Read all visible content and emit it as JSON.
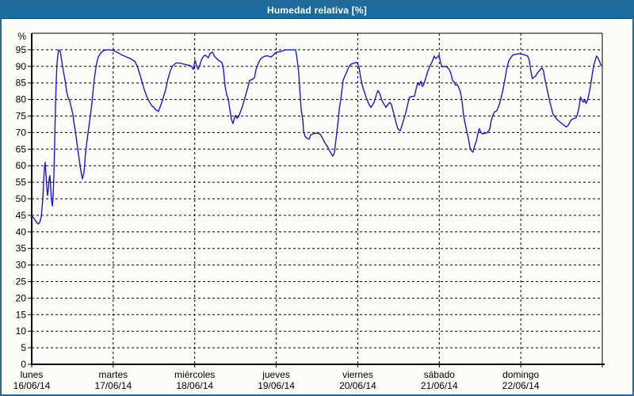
{
  "window": {
    "title": "Humedad relativa [%]"
  },
  "colors": {
    "window_border": "#26689a",
    "titlebar_bg": "#1d6a9e",
    "titlebar_text": "#ffffff",
    "background": "#fcfdf9",
    "grid": "#000000",
    "axis": "#000000",
    "line": "#1a1ac8",
    "label_text": "#000000"
  },
  "chart_data": {
    "type": "line",
    "title": "Humedad relativa [%]",
    "ylabel": "%",
    "ylim": [
      0,
      100
    ],
    "yticks": [
      0,
      5,
      10,
      15,
      20,
      25,
      30,
      35,
      40,
      45,
      50,
      55,
      60,
      65,
      70,
      75,
      80,
      85,
      90,
      95
    ],
    "x_days": 7,
    "grid": true,
    "legend": "none",
    "days": [
      {
        "name": "lunes",
        "date": "16/06/14"
      },
      {
        "name": "martes",
        "date": "17/06/14"
      },
      {
        "name": "miércoles",
        "date": "18/06/14"
      },
      {
        "name": "jueves",
        "date": "19/06/14"
      },
      {
        "name": "viernes",
        "date": "20/06/14"
      },
      {
        "name": "sábado",
        "date": "21/06/14"
      },
      {
        "name": "domingo",
        "date": "22/06/14"
      }
    ],
    "series": [
      {
        "name": "Humedad relativa [%]",
        "unit": "%",
        "points": [
          [
            0,
            45
          ],
          [
            0.019,
            44.3
          ],
          [
            0.039,
            43.7
          ],
          [
            0.058,
            43
          ],
          [
            0.078,
            42.4
          ],
          [
            0.097,
            42.8
          ],
          [
            0.117,
            44.5
          ],
          [
            0.136,
            50
          ],
          [
            0.146,
            55
          ],
          [
            0.156,
            59
          ],
          [
            0.165,
            61
          ],
          [
            0.175,
            57.5
          ],
          [
            0.185,
            53.5
          ],
          [
            0.194,
            51
          ],
          [
            0.204,
            53
          ],
          [
            0.214,
            56
          ],
          [
            0.224,
            57
          ],
          [
            0.233,
            53
          ],
          [
            0.243,
            49.5
          ],
          [
            0.253,
            47.8
          ],
          [
            0.262,
            50
          ],
          [
            0.272,
            57
          ],
          [
            0.282,
            67
          ],
          [
            0.292,
            78
          ],
          [
            0.301,
            86
          ],
          [
            0.311,
            91
          ],
          [
            0.321,
            93.5
          ],
          [
            0.331,
            95
          ],
          [
            0.35,
            94.5
          ],
          [
            0.369,
            91.5
          ],
          [
            0.389,
            88.5
          ],
          [
            0.408,
            86
          ],
          [
            0.428,
            82.5
          ],
          [
            0.447,
            80.5
          ],
          [
            0.467,
            79.5
          ],
          [
            0.486,
            77.5
          ],
          [
            0.506,
            75.5
          ],
          [
            0.515,
            73.5
          ],
          [
            0.535,
            70.5
          ],
          [
            0.554,
            67
          ],
          [
            0.574,
            63.5
          ],
          [
            0.593,
            60
          ],
          [
            0.612,
            57.3
          ],
          [
            0.622,
            56
          ],
          [
            0.642,
            58
          ],
          [
            0.651,
            61
          ],
          [
            0.661,
            64
          ],
          [
            0.681,
            68
          ],
          [
            0.7,
            71.5
          ],
          [
            0.719,
            75
          ],
          [
            0.739,
            79
          ],
          [
            0.758,
            84
          ],
          [
            0.778,
            88
          ],
          [
            0.797,
            91
          ],
          [
            0.817,
            92.8
          ],
          [
            0.846,
            94
          ],
          [
            0.875,
            94.7
          ],
          [
            0.914,
            95
          ],
          [
            0.953,
            95
          ],
          [
            0.982,
            94.9
          ],
          [
            1.001,
            94.8
          ],
          [
            1.04,
            94.4
          ],
          [
            1.079,
            93.8
          ],
          [
            1.118,
            93.3
          ],
          [
            1.167,
            92.8
          ],
          [
            1.215,
            92.3
          ],
          [
            1.264,
            91.5
          ],
          [
            1.293,
            90.2
          ],
          [
            1.322,
            88
          ],
          [
            1.351,
            85.5
          ],
          [
            1.381,
            83
          ],
          [
            1.41,
            81
          ],
          [
            1.439,
            79.5
          ],
          [
            1.468,
            78.3
          ],
          [
            1.497,
            77.6
          ],
          [
            1.526,
            76.8
          ],
          [
            1.556,
            76.4
          ],
          [
            1.585,
            78.4
          ],
          [
            1.614,
            80.5
          ],
          [
            1.643,
            83
          ],
          [
            1.672,
            86.3
          ],
          [
            1.701,
            88.7
          ],
          [
            1.731,
            90.2
          ],
          [
            1.769,
            91
          ],
          [
            1.808,
            91
          ],
          [
            1.847,
            90.8
          ],
          [
            1.896,
            90.5
          ],
          [
            1.935,
            90.3
          ],
          [
            1.964,
            89.9
          ],
          [
            1.983,
            89.1
          ],
          [
            2.003,
            91.9
          ],
          [
            2.022,
            90.3
          ],
          [
            2.042,
            89.1
          ],
          [
            2.061,
            90.3
          ],
          [
            2.081,
            91.9
          ],
          [
            2.11,
            93.1
          ],
          [
            2.129,
            93.4
          ],
          [
            2.149,
            93
          ],
          [
            2.168,
            92.6
          ],
          [
            2.188,
            93.9
          ],
          [
            2.217,
            94.3
          ],
          [
            2.246,
            93
          ],
          [
            2.275,
            92.2
          ],
          [
            2.304,
            91.6
          ],
          [
            2.333,
            91.2
          ],
          [
            2.353,
            89
          ],
          [
            2.372,
            84
          ],
          [
            2.392,
            81.5
          ],
          [
            2.411,
            80.2
          ],
          [
            2.431,
            77
          ],
          [
            2.45,
            74
          ],
          [
            2.469,
            72.7
          ],
          [
            2.489,
            74.5
          ],
          [
            2.499,
            75.2
          ],
          [
            2.518,
            74.3
          ],
          [
            2.538,
            74.8
          ],
          [
            2.557,
            76
          ],
          [
            2.586,
            78
          ],
          [
            2.615,
            80.5
          ],
          [
            2.644,
            83
          ],
          [
            2.674,
            85.8
          ],
          [
            2.703,
            86
          ],
          [
            2.732,
            86.5
          ],
          [
            2.751,
            89
          ],
          [
            2.781,
            91
          ],
          [
            2.81,
            92.3
          ],
          [
            2.849,
            93
          ],
          [
            2.888,
            93.2
          ],
          [
            2.917,
            93
          ],
          [
            2.936,
            92.8
          ],
          [
            2.965,
            93.5
          ],
          [
            2.994,
            94.2
          ],
          [
            3.033,
            94.4
          ],
          [
            3.072,
            94.6
          ],
          [
            3.111,
            95
          ],
          [
            3.16,
            95
          ],
          [
            3.208,
            95
          ],
          [
            3.238,
            95
          ],
          [
            3.257,
            92
          ],
          [
            3.276,
            88
          ],
          [
            3.286,
            84
          ],
          [
            3.306,
            77
          ],
          [
            3.325,
            74
          ],
          [
            3.335,
            70.5
          ],
          [
            3.354,
            68.8
          ],
          [
            3.383,
            68.2
          ],
          [
            3.403,
            68
          ],
          [
            3.422,
            69.3
          ],
          [
            3.451,
            69.6
          ],
          [
            3.481,
            69.8
          ],
          [
            3.51,
            69.8
          ],
          [
            3.539,
            69.5
          ],
          [
            3.568,
            68.3
          ],
          [
            3.597,
            66.9
          ],
          [
            3.626,
            65.8
          ],
          [
            3.646,
            64.9
          ],
          [
            3.675,
            63.6
          ],
          [
            3.694,
            62.9
          ],
          [
            3.714,
            64
          ],
          [
            3.724,
            66
          ],
          [
            3.743,
            70
          ],
          [
            3.762,
            74
          ],
          [
            3.772,
            77
          ],
          [
            3.792,
            80
          ],
          [
            3.821,
            85.8
          ],
          [
            3.84,
            87
          ],
          [
            3.86,
            88
          ],
          [
            3.889,
            89.8
          ],
          [
            3.918,
            90.7
          ],
          [
            3.957,
            91
          ],
          [
            3.976,
            91.2
          ],
          [
            3.996,
            90.9
          ],
          [
            4.015,
            89.8
          ],
          [
            4.035,
            86.7
          ],
          [
            4.064,
            83.5
          ],
          [
            4.103,
            80.7
          ],
          [
            4.132,
            78.8
          ],
          [
            4.161,
            77.6
          ],
          [
            4.2,
            79.1
          ],
          [
            4.229,
            81.5
          ],
          [
            4.249,
            82.7
          ],
          [
            4.268,
            81.9
          ],
          [
            4.297,
            79.6
          ],
          [
            4.326,
            78.4
          ],
          [
            4.346,
            77.6
          ],
          [
            4.365,
            78.4
          ],
          [
            4.394,
            79.1
          ],
          [
            4.414,
            78.4
          ],
          [
            4.443,
            75.6
          ],
          [
            4.472,
            72.8
          ],
          [
            4.492,
            71.2
          ],
          [
            4.521,
            70.5
          ],
          [
            4.55,
            72.8
          ],
          [
            4.589,
            76
          ],
          [
            4.618,
            79.1
          ],
          [
            4.637,
            80.7
          ],
          [
            4.667,
            80.9
          ],
          [
            4.696,
            81
          ],
          [
            4.715,
            83.1
          ],
          [
            4.735,
            85
          ],
          [
            4.754,
            84.3
          ],
          [
            4.774,
            85.5
          ],
          [
            4.793,
            83.9
          ],
          [
            4.812,
            84.7
          ],
          [
            4.832,
            86.3
          ],
          [
            4.861,
            88.7
          ],
          [
            4.89,
            90.3
          ],
          [
            4.919,
            91.8
          ],
          [
            4.939,
            93.1
          ],
          [
            4.958,
            92.4
          ],
          [
            4.978,
            92.8
          ],
          [
            4.997,
            93.4
          ],
          [
            5.017,
            91
          ],
          [
            5.036,
            89.8
          ],
          [
            5.065,
            90
          ],
          [
            5.094,
            89.8
          ],
          [
            5.124,
            89
          ],
          [
            5.143,
            87.9
          ],
          [
            5.162,
            85.8
          ],
          [
            5.182,
            85.3
          ],
          [
            5.201,
            84.3
          ],
          [
            5.221,
            84.5
          ],
          [
            5.24,
            83.5
          ],
          [
            5.259,
            82.3
          ],
          [
            5.279,
            79.6
          ],
          [
            5.298,
            75.2
          ],
          [
            5.317,
            72.8
          ],
          [
            5.337,
            70.5
          ],
          [
            5.356,
            68.5
          ],
          [
            5.376,
            65.5
          ],
          [
            5.395,
            64.5
          ],
          [
            5.414,
            64.1
          ],
          [
            5.434,
            66
          ],
          [
            5.453,
            67.3
          ],
          [
            5.472,
            69.5
          ],
          [
            5.492,
            71.2
          ],
          [
            5.511,
            70
          ],
          [
            5.531,
            69.6
          ],
          [
            5.56,
            69.8
          ],
          [
            5.589,
            70
          ],
          [
            5.618,
            71
          ],
          [
            5.637,
            73.6
          ],
          [
            5.657,
            75.2
          ],
          [
            5.676,
            76.2
          ],
          [
            5.706,
            76.6
          ],
          [
            5.735,
            78.4
          ],
          [
            5.754,
            80
          ],
          [
            5.773,
            82
          ],
          [
            5.793,
            84.5
          ],
          [
            5.812,
            87
          ],
          [
            5.831,
            89.8
          ],
          [
            5.851,
            91.5
          ],
          [
            5.87,
            92.4
          ],
          [
            5.899,
            93.4
          ],
          [
            5.928,
            93.6
          ],
          [
            5.967,
            93.8
          ],
          [
            5.996,
            93.8
          ],
          [
            6.026,
            93.6
          ],
          [
            6.055,
            93.4
          ],
          [
            6.084,
            93.1
          ],
          [
            6.103,
            92
          ],
          [
            6.122,
            88.7
          ],
          [
            6.142,
            86.3
          ],
          [
            6.161,
            86.7
          ],
          [
            6.181,
            87.1
          ],
          [
            6.2,
            87.9
          ],
          [
            6.229,
            88.7
          ],
          [
            6.258,
            89.6
          ],
          [
            6.278,
            88.7
          ],
          [
            6.297,
            86
          ],
          [
            6.316,
            83.9
          ],
          [
            6.336,
            81.5
          ],
          [
            6.355,
            79.4
          ],
          [
            6.374,
            77.6
          ],
          [
            6.394,
            75.6
          ],
          [
            6.423,
            74.6
          ],
          [
            6.452,
            73.8
          ],
          [
            6.481,
            73.2
          ],
          [
            6.51,
            72.6
          ],
          [
            6.539,
            72
          ],
          [
            6.559,
            71.7
          ],
          [
            6.578,
            72.1
          ],
          [
            6.598,
            73
          ],
          [
            6.617,
            73.8
          ],
          [
            6.646,
            74.2
          ],
          [
            6.675,
            74.4
          ],
          [
            6.694,
            75.4
          ],
          [
            6.714,
            77.6
          ],
          [
            6.733,
            80.7
          ],
          [
            6.753,
            79.6
          ],
          [
            6.772,
            79.2
          ],
          [
            6.782,
            80
          ],
          [
            6.801,
            78.8
          ],
          [
            6.821,
            80
          ],
          [
            6.84,
            82
          ],
          [
            6.859,
            84.7
          ],
          [
            6.879,
            88
          ],
          [
            6.898,
            90.6
          ],
          [
            6.918,
            92.2
          ],
          [
            6.928,
            93.1
          ],
          [
            6.947,
            92.6
          ],
          [
            6.966,
            91.5
          ],
          [
            6.986,
            90.2
          ]
        ]
      }
    ]
  }
}
